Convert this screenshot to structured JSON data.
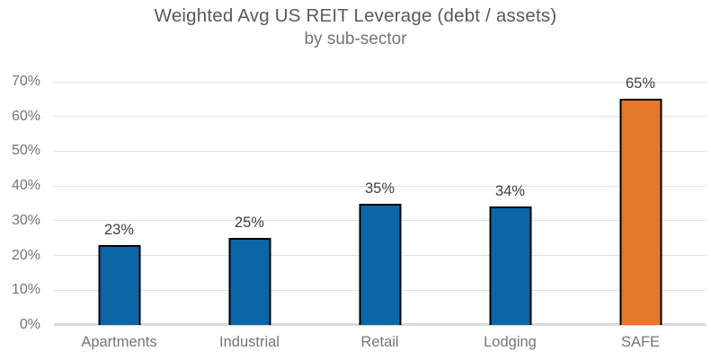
{
  "chart_data": {
    "type": "bar",
    "title": "Weighted Avg US REIT Leverage (debt / assets)",
    "subtitle": "by sub-sector",
    "categories": [
      "Apartments",
      "Industrial",
      "Retail",
      "Lodging",
      "SAFE"
    ],
    "values": [
      23,
      25,
      35,
      34,
      65
    ],
    "data_labels": [
      "23%",
      "25%",
      "35%",
      "34%",
      "65%"
    ],
    "bar_colors": [
      "#0B66A8",
      "#0B66A8",
      "#0B66A8",
      "#0B66A8",
      "#E4782B"
    ],
    "bar_border_color": "#000000",
    "xlabel": "",
    "ylabel": "",
    "ylim": [
      0,
      70
    ],
    "yticks": [
      0,
      10,
      20,
      30,
      40,
      50,
      60,
      70
    ],
    "ytick_labels": [
      "0%",
      "10%",
      "20%",
      "30%",
      "40%",
      "50%",
      "60%",
      "70%"
    ],
    "grid": "horizontal-on",
    "legend": "none"
  },
  "colors": {
    "background": "#FFFFFF",
    "title_text": "#58595B",
    "subtitle_text": "#757575",
    "axis_text": "#757575",
    "data_label_text": "#404040",
    "gridline": "#E2E2E2",
    "axis_line": "#D9D9D9"
  }
}
